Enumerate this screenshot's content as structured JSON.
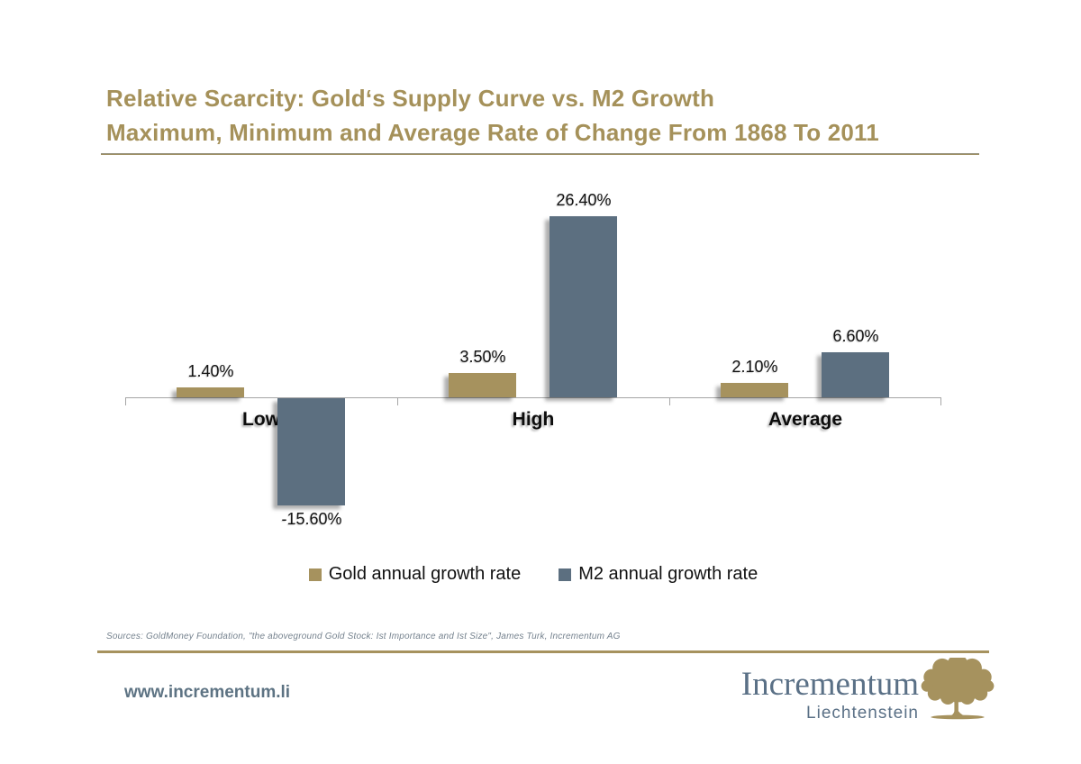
{
  "slide": {
    "title_line1": "Relative Scarcity: Gold‘s Supply Curve vs. M2 Growth",
    "title_line2": "Maximum, Minimum and Average Rate of Change From 1868 To 2011",
    "title_color": "#A5915A",
    "sources": "Sources: GoldMoney Foundation, \"the aboveground Gold Stock: Ist Importance and Ist Size\", James Turk, Incrementum AG",
    "footer": {
      "url": "www.incrementum.li",
      "logo_name": "Incrementum",
      "logo_subtitle": "Liechtenstein",
      "tree_icon": "tree-icon",
      "rule_color": "#A6925E"
    }
  },
  "chart_data": {
    "type": "bar",
    "categories": [
      "Low",
      "High",
      "Average"
    ],
    "series": [
      {
        "name": "Gold annual growth rate",
        "color": "#A6925E",
        "values": [
          1.4,
          3.5,
          2.1
        ]
      },
      {
        "name": "M2 annual growth rate",
        "color": "#5C6F80",
        "values": [
          -15.6,
          26.4,
          6.6
        ]
      }
    ],
    "data_labels": [
      [
        "1.40%",
        "3.50%",
        "2.10%"
      ],
      [
        "-15.60%",
        "26.40%",
        "6.60%"
      ]
    ],
    "ylim": [
      -20,
      30
    ],
    "grid": false,
    "legend_position": "bottom",
    "axis_color": "#A6A6A6"
  }
}
